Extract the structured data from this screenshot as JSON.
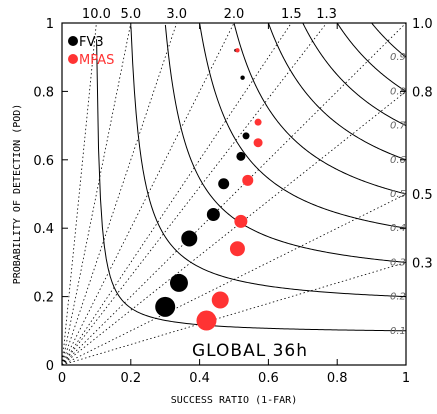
{
  "chart_data": {
    "type": "scatter",
    "title": "",
    "xlabel": "SUCCESS RATIO (1-FAR)",
    "ylabel": "PROBABILITY OF DETECTION (POD)",
    "xlim": [
      0,
      1
    ],
    "ylim": [
      0,
      1
    ],
    "x_ticks": [
      "0",
      "0.2",
      "0.4",
      "0.6",
      "0.8",
      "1"
    ],
    "y_ticks": [
      "0",
      "0.2",
      "0.4",
      "0.6",
      "0.8",
      "1"
    ],
    "grid": false,
    "legend_position": "top-left",
    "annotation": "GLOBAL 36h",
    "bias_lines": [
      {
        "value": 10.0,
        "label": "10.0",
        "edge": "top"
      },
      {
        "value": 5.0,
        "label": "5.0",
        "edge": "top"
      },
      {
        "value": 3.0,
        "label": "3.0",
        "edge": "top"
      },
      {
        "value": 2.0,
        "label": "2.0",
        "edge": "top"
      },
      {
        "value": 1.5,
        "label": "1.5",
        "edge": "top"
      },
      {
        "value": 1.3,
        "label": "1.3",
        "edge": "top"
      },
      {
        "value": 1.0,
        "label": "1.0",
        "edge": "right"
      },
      {
        "value": 0.8,
        "label": "0.8",
        "edge": "right"
      },
      {
        "value": 0.5,
        "label": "0.5",
        "edge": "right"
      },
      {
        "value": 0.3,
        "label": "0.3",
        "edge": "right"
      }
    ],
    "csi_contours": [
      {
        "value": 0.1,
        "label": "0.1"
      },
      {
        "value": 0.2,
        "label": "0.2"
      },
      {
        "value": 0.3,
        "label": "0.3"
      },
      {
        "value": 0.4,
        "label": "0.4"
      },
      {
        "value": 0.5,
        "label": "0.5"
      },
      {
        "value": 0.6,
        "label": "0.6"
      },
      {
        "value": 0.7,
        "label": "0.7"
      },
      {
        "value": 0.8,
        "label": "0.8"
      },
      {
        "value": 0.9,
        "label": "0.9"
      }
    ],
    "series": [
      {
        "name": "FV3",
        "color": "#000000",
        "points": [
          {
            "x": 0.3,
            "y": 0.17,
            "r": 10
          },
          {
            "x": 0.34,
            "y": 0.24,
            "r": 9
          },
          {
            "x": 0.37,
            "y": 0.37,
            "r": 8
          },
          {
            "x": 0.44,
            "y": 0.44,
            "r": 6.5
          },
          {
            "x": 0.47,
            "y": 0.53,
            "r": 5.5
          },
          {
            "x": 0.52,
            "y": 0.61,
            "r": 4.5
          },
          {
            "x": 0.535,
            "y": 0.67,
            "r": 3.5
          },
          {
            "x": 0.525,
            "y": 0.84,
            "r": 2.2
          },
          {
            "x": 0.505,
            "y": 0.92,
            "r": 1.5
          }
        ]
      },
      {
        "name": "MPAS",
        "color": "#ff3333",
        "points": [
          {
            "x": 0.42,
            "y": 0.13,
            "r": 10
          },
          {
            "x": 0.46,
            "y": 0.19,
            "r": 8.5
          },
          {
            "x": 0.51,
            "y": 0.34,
            "r": 7.5
          },
          {
            "x": 0.52,
            "y": 0.42,
            "r": 6.5
          },
          {
            "x": 0.54,
            "y": 0.54,
            "r": 5.5
          },
          {
            "x": 0.57,
            "y": 0.65,
            "r": 4.5
          },
          {
            "x": 0.57,
            "y": 0.71,
            "r": 3.5
          },
          {
            "x": 0.51,
            "y": 0.92,
            "r": 2.2
          }
        ]
      }
    ]
  }
}
